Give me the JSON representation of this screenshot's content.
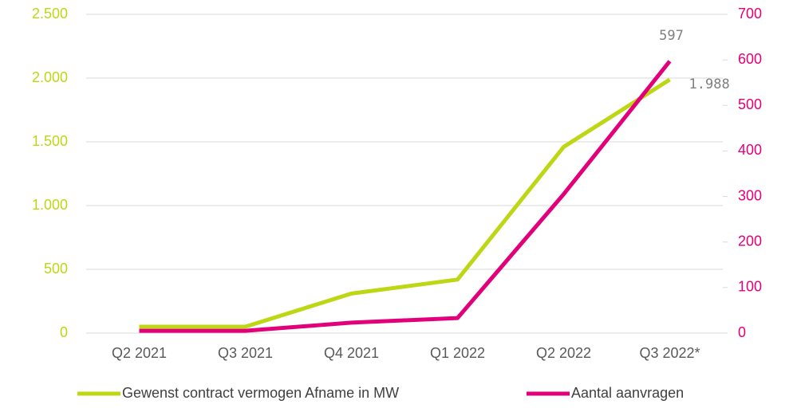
{
  "chart_data": {
    "type": "line",
    "categories": [
      "Q2 2021",
      "Q3 2021",
      "Q4 2021",
      "Q1 2022",
      "Q2 2022",
      "Q3 2022*"
    ],
    "series": [
      {
        "name": "Gewenst contract vermogen Afname in MW",
        "color": "#bdd715",
        "values": [
          50,
          50,
          310,
          420,
          1460,
          1988
        ],
        "value_labels": [
          null,
          null,
          null,
          null,
          null,
          "1.988"
        ]
      },
      {
        "name": "Aantal aanvragen",
        "color": "#e2007a",
        "axis": "y2",
        "values": [
          5,
          5,
          23,
          33,
          305,
          597
        ],
        "value_labels": [
          null,
          null,
          null,
          null,
          null,
          "597"
        ]
      }
    ],
    "ylim": [
      0,
      2500
    ],
    "yticks": [
      0,
      500,
      {
        "value": 1000,
        "label": "1.000"
      },
      {
        "value": 1500,
        "label": "1.500"
      },
      {
        "value": 2000,
        "label": "2.000"
      },
      {
        "value": 2500,
        "label": "2.500"
      }
    ],
    "y2lim": [
      0,
      700
    ],
    "y2ticks": [
      0,
      100,
      200,
      300,
      400,
      500,
      600,
      700
    ],
    "grid": true,
    "legend": "bottom"
  }
}
